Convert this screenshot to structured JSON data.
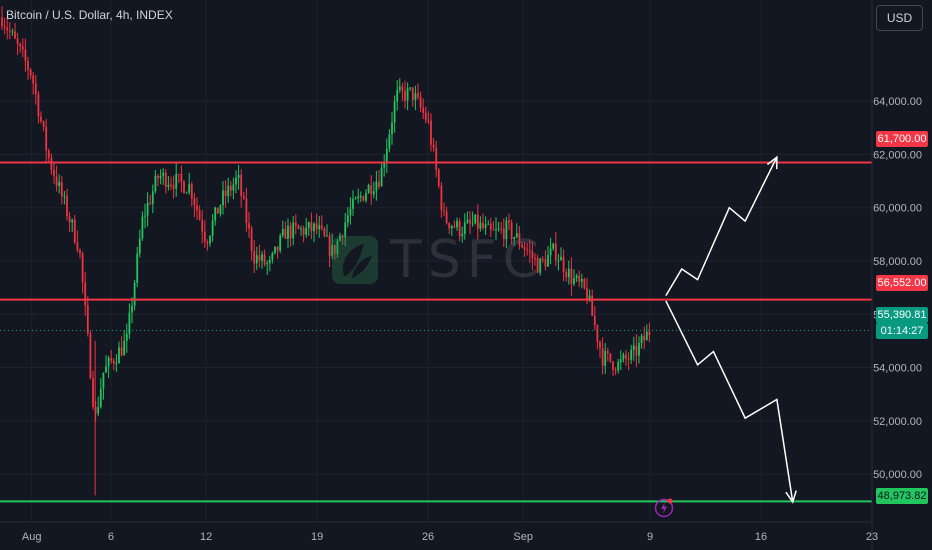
{
  "header": {
    "title": "Bitcoin / U.S. Dollar, 4h, INDEX",
    "currency": "USD"
  },
  "watermark": {
    "text": "TSFC",
    "icon": "tsfc-leaf-logo-icon"
  },
  "colors": {
    "background": "#131722",
    "grid": "#1f2330",
    "up": "#22c55e",
    "down": "#ef3340",
    "resistance": "#f23645",
    "support": "#22c55e",
    "arrow": "#ffffff",
    "current_price": "#089981"
  },
  "price_labels": {
    "current_price": "55,390.81",
    "countdown": "01:14:27",
    "resistance_high": "61,700.00",
    "resistance_mid": "56,552.00",
    "support_low": "48,973.82"
  },
  "events_icon": "lightning-bolt-icon",
  "chart_data": {
    "type": "candlestick",
    "title": "Bitcoin / U.S. Dollar, 4h, INDEX",
    "xlabel": "",
    "ylabel": "",
    "y_range": [
      48200,
      67800
    ],
    "y_ticks": [
      {
        "value": 50000,
        "label": "50,000.00"
      },
      {
        "value": 52000,
        "label": "52,000.00"
      },
      {
        "value": 54000,
        "label": "54,000.00"
      },
      {
        "value": 56000,
        "label": "56,000.00"
      },
      {
        "value": 58000,
        "label": "58,000.00"
      },
      {
        "value": 60000,
        "label": "60,000.00"
      },
      {
        "value": 62000,
        "label": "62,000.00"
      },
      {
        "value": 64000,
        "label": "64,000.00"
      }
    ],
    "x_range": [
      "2024-07-30",
      "2024-09-23"
    ],
    "x_ticks": [
      {
        "date": "2024-08-01",
        "label": "Aug"
      },
      {
        "date": "2024-08-06",
        "label": "6"
      },
      {
        "date": "2024-08-12",
        "label": "12"
      },
      {
        "date": "2024-08-19",
        "label": "19"
      },
      {
        "date": "2024-08-26",
        "label": "26"
      },
      {
        "date": "2024-09-01",
        "label": "Sep"
      },
      {
        "date": "2024-09-09",
        "label": "9"
      },
      {
        "date": "2024-09-16",
        "label": "16"
      },
      {
        "date": "2024-09-23",
        "label": "23"
      }
    ],
    "grid": true,
    "horizontal_lines": [
      {
        "value": 61700,
        "label": "61,700.00",
        "color": "#f23645"
      },
      {
        "value": 56552,
        "label": "56,552.00",
        "color": "#f23645"
      },
      {
        "value": 48973.82,
        "label": "48,973.82",
        "color": "#22c55e"
      }
    ],
    "current_price": {
      "value": 55390.81,
      "label": "55,390.81"
    },
    "price_path": [
      {
        "date": "2024-07-30",
        "price": 67300
      },
      {
        "date": "2024-08-01",
        "price": 65000
      },
      {
        "date": "2024-08-02",
        "price": 62000
      },
      {
        "date": "2024-08-04",
        "price": 58500
      },
      {
        "date": "2024-08-05",
        "price": 52000
      },
      {
        "date": "2024-08-05T12",
        "price": 53800
      },
      {
        "date": "2024-08-07",
        "price": 55000
      },
      {
        "date": "2024-08-08",
        "price": 59600
      },
      {
        "date": "2024-08-09",
        "price": 61200
      },
      {
        "date": "2024-08-11",
        "price": 60800
      },
      {
        "date": "2024-08-12",
        "price": 58800
      },
      {
        "date": "2024-08-13",
        "price": 60300
      },
      {
        "date": "2024-08-14",
        "price": 61100
      },
      {
        "date": "2024-08-15",
        "price": 58200
      },
      {
        "date": "2024-08-16",
        "price": 57800
      },
      {
        "date": "2024-08-17",
        "price": 59100
      },
      {
        "date": "2024-08-19",
        "price": 59200
      },
      {
        "date": "2024-08-20",
        "price": 58300
      },
      {
        "date": "2024-08-21",
        "price": 59800
      },
      {
        "date": "2024-08-22",
        "price": 60600
      },
      {
        "date": "2024-08-23",
        "price": 61200
      },
      {
        "date": "2024-08-24",
        "price": 64200
      },
      {
        "date": "2024-08-25",
        "price": 64300
      },
      {
        "date": "2024-08-26",
        "price": 63200
      },
      {
        "date": "2024-08-27",
        "price": 59600
      },
      {
        "date": "2024-08-28",
        "price": 59200
      },
      {
        "date": "2024-08-29",
        "price": 59400
      },
      {
        "date": "2024-08-30",
        "price": 59000
      },
      {
        "date": "2024-08-31",
        "price": 59200
      },
      {
        "date": "2024-09-01",
        "price": 58600
      },
      {
        "date": "2024-09-02",
        "price": 57800
      },
      {
        "date": "2024-09-03",
        "price": 58400
      },
      {
        "date": "2024-09-04",
        "price": 57400
      },
      {
        "date": "2024-09-05",
        "price": 56800
      },
      {
        "date": "2024-09-06",
        "price": 54400
      },
      {
        "date": "2024-09-07",
        "price": 54100
      },
      {
        "date": "2024-09-08",
        "price": 54500
      },
      {
        "date": "2024-09-09",
        "price": 55390.81
      }
    ],
    "projections": [
      {
        "name": "",
        "color": "#ffffff",
        "points": [
          {
            "date": "2024-09-10",
            "price": 56700
          },
          {
            "date": "2024-09-11",
            "price": 57700
          },
          {
            "date": "2024-09-12",
            "price": 57300
          },
          {
            "date": "2024-09-14",
            "price": 60000
          },
          {
            "date": "2024-09-15",
            "price": 59500
          },
          {
            "date": "2024-09-17",
            "price": 61900
          }
        ]
      },
      {
        "name": "",
        "color": "#ffffff",
        "points": [
          {
            "date": "2024-09-10",
            "price": 56500
          },
          {
            "date": "2024-09-12",
            "price": 54100
          },
          {
            "date": "2024-09-13",
            "price": 54600
          },
          {
            "date": "2024-09-15",
            "price": 52100
          },
          {
            "date": "2024-09-17",
            "price": 52800
          },
          {
            "date": "2024-09-18",
            "price": 48950
          }
        ]
      }
    ]
  }
}
